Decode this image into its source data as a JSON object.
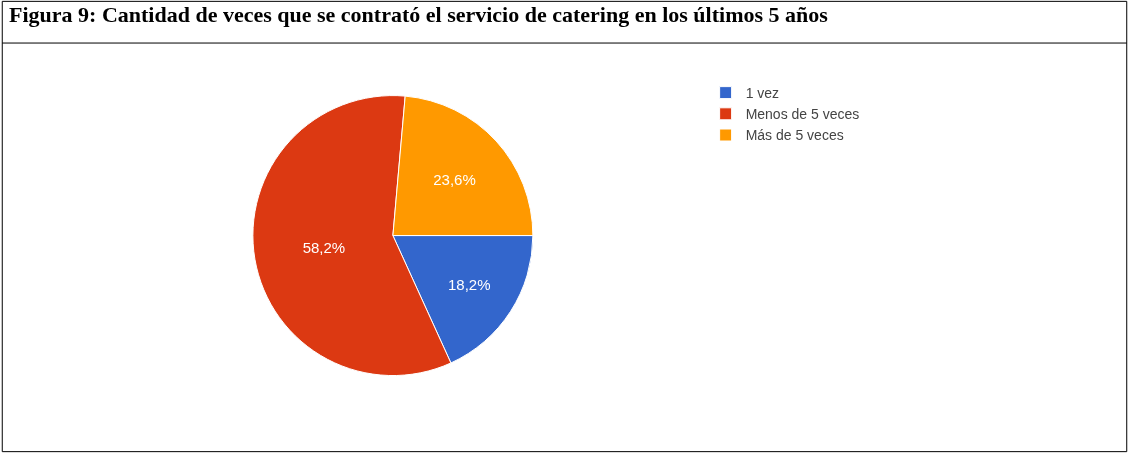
{
  "chart_data": {
    "type": "pie",
    "title": "Figura 9: Cantidad de veces que se contrató el servicio de catering en los últimos 5 años",
    "categories": [
      "1 vez",
      "Menos de 5 veces",
      "Más de 5 veces"
    ],
    "values": [
      18.2,
      58.2,
      23.6
    ],
    "value_labels": [
      "18,2%",
      "58,2%",
      "23,6%"
    ],
    "colors": [
      "#3366cc",
      "#dc3912",
      "#ff9900"
    ],
    "legend": "right"
  }
}
